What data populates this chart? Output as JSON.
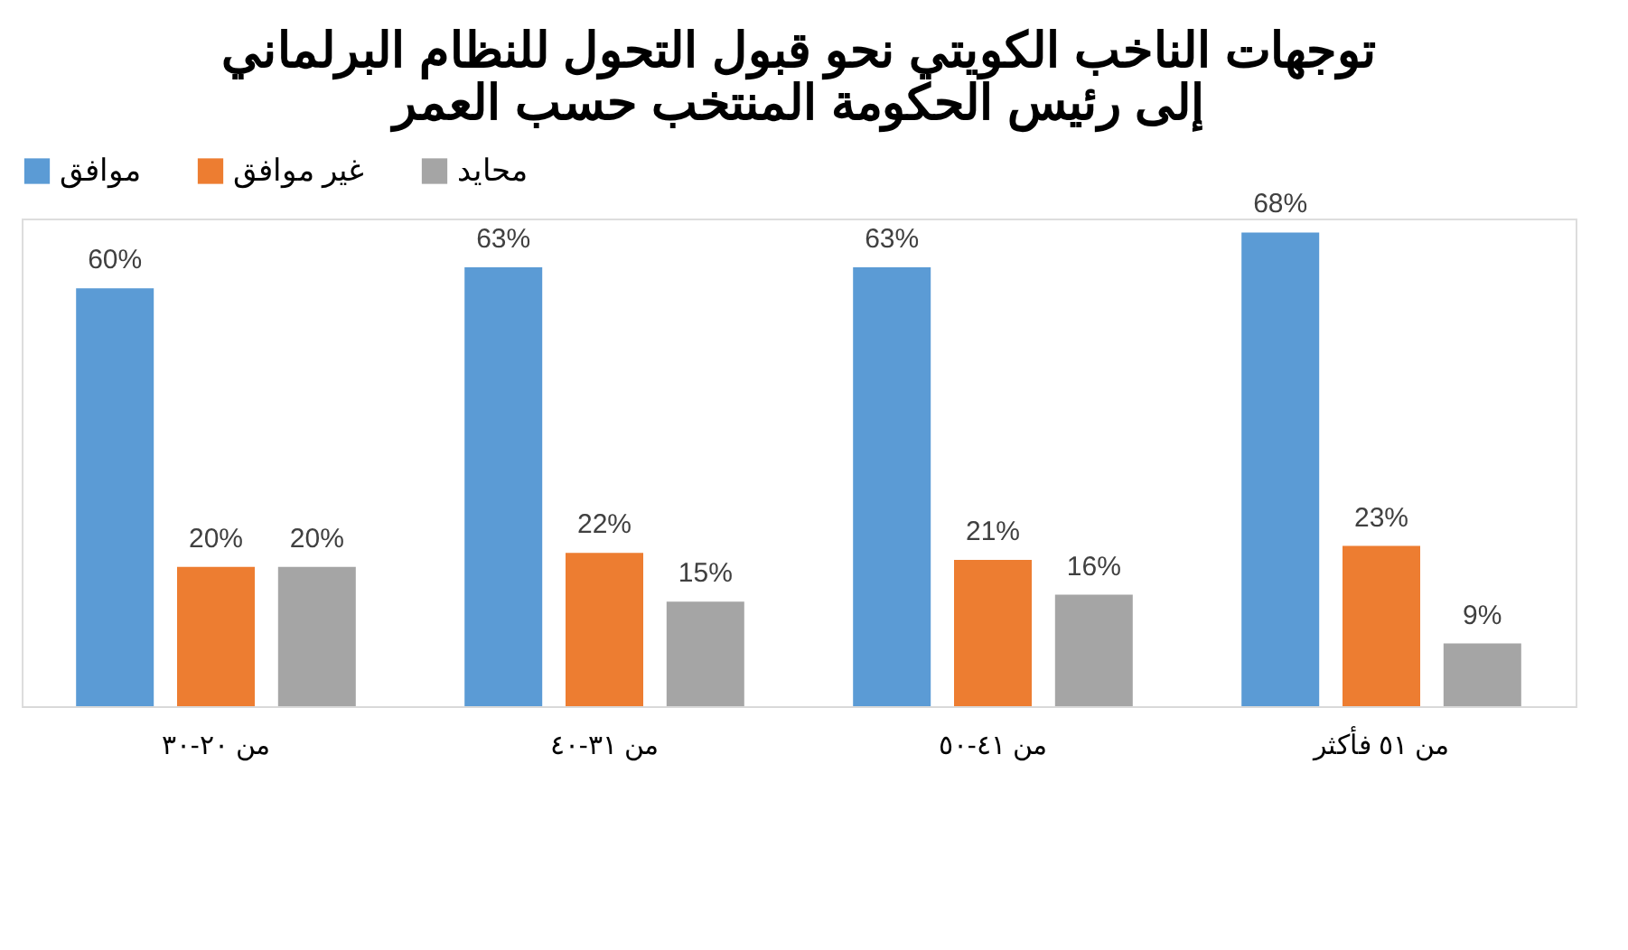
{
  "chart_data": {
    "type": "bar",
    "title": [
      "توجهات الناخب الكويتي نحو قبول التحول للنظام البرلماني",
      "إلى رئيس الحكومة المنتخب حسب العمر"
    ],
    "categories": [
      "من ٢٠-٣٠",
      "من ٣١-٤٠",
      "من ٤١-٥٠",
      "من ٥١ فأكثر"
    ],
    "series": [
      {
        "name": "موافق",
        "color": "#5b9bd5",
        "values": [
          60,
          63,
          63,
          68
        ],
        "value_labels": [
          "60%",
          "63%",
          "63%",
          "68%"
        ]
      },
      {
        "name": "غير موافق",
        "color": "#ed7d31",
        "values": [
          20,
          22,
          21,
          23
        ],
        "value_labels": [
          "20%",
          "22%",
          "21%",
          "23%"
        ]
      },
      {
        "name": "محايد",
        "color": "#a5a5a5",
        "values": [
          20,
          15,
          16,
          9
        ],
        "value_labels": [
          "20%",
          "15%",
          "16%",
          "9%"
        ]
      }
    ],
    "legend": "top",
    "grid": false,
    "tick_labels": "x"
  }
}
